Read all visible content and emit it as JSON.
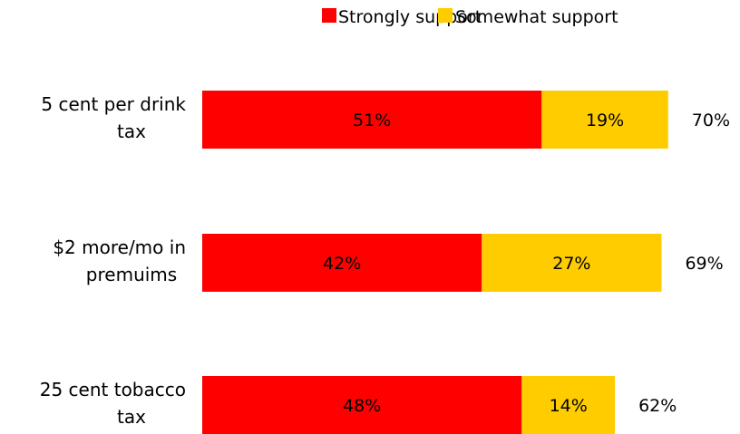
{
  "chart_data": {
    "type": "bar",
    "orientation": "horizontal",
    "stacked": true,
    "categories": [
      "5 cent per drink tax",
      "$2 more/mo in premuims",
      "25 cent tobacco tax"
    ],
    "category_lines": [
      [
        "5 cent per drink",
        "tax"
      ],
      [
        "$2 more/mo in",
        "premuims"
      ],
      [
        "25 cent tobacco",
        "tax"
      ]
    ],
    "series": [
      {
        "name": "Strongly support",
        "color": "#ff0000",
        "values": [
          51,
          42,
          48
        ],
        "labels": [
          "51%",
          "42%",
          "48%"
        ]
      },
      {
        "name": "Somewhat support",
        "color": "#ffcc00",
        "values": [
          19,
          27,
          14
        ],
        "labels": [
          "19%",
          "27%",
          "14%"
        ]
      }
    ],
    "totals": [
      70,
      69,
      62
    ],
    "total_labels": [
      "70%",
      "69%",
      "62%"
    ],
    "xlim": [
      0,
      100
    ],
    "legend_position": "top",
    "grid": false
  }
}
